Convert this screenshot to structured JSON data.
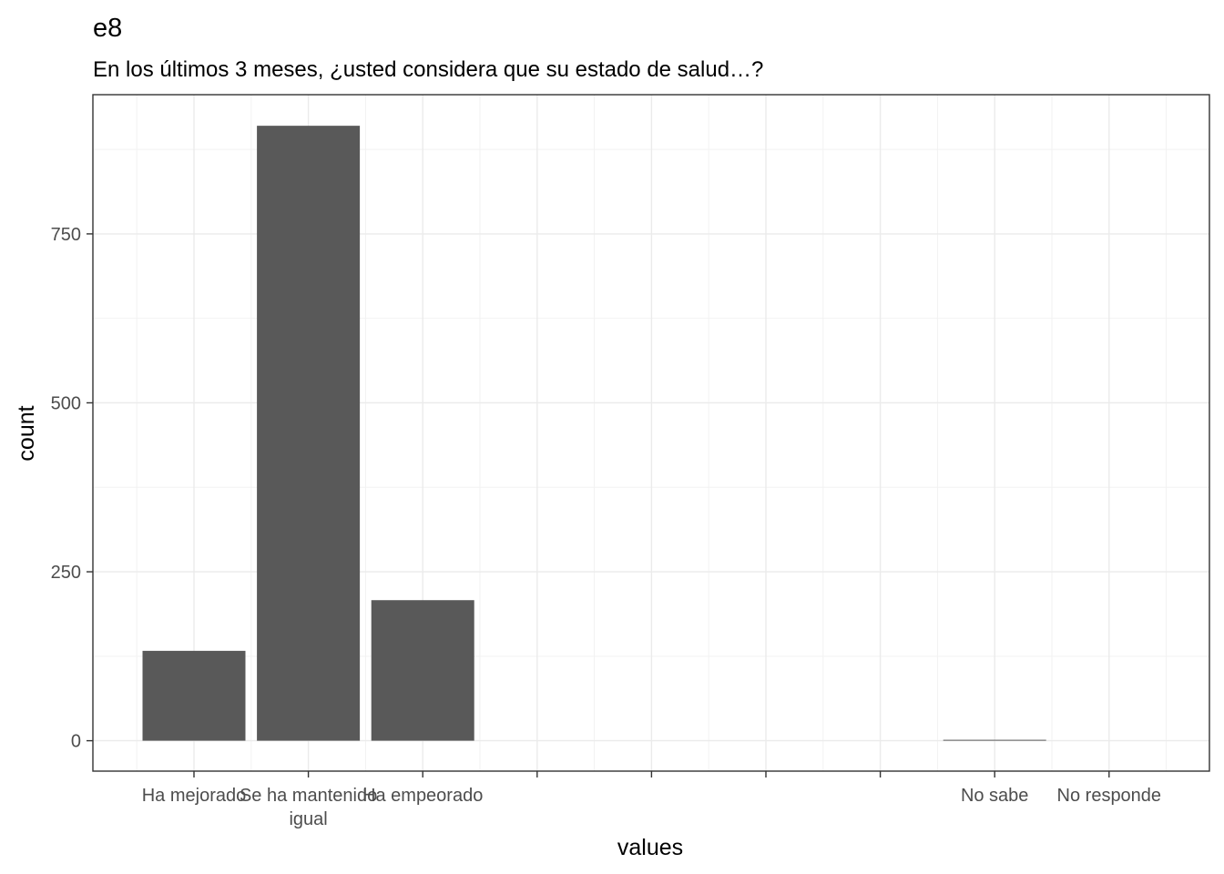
{
  "chart_data": {
    "type": "bar",
    "title": "e8",
    "subtitle": "En los últimos 3 meses, ¿usted considera que su estado de salud…?",
    "xlabel": "values",
    "ylabel": "count",
    "categories": [
      "Ha mejorado",
      "Se ha mantenido igual",
      "Ha empeorado",
      "",
      "",
      "",
      "",
      "No sabe",
      "No responde"
    ],
    "category_label_lines": [
      [
        "Ha mejorado"
      ],
      [
        "Se ha mantenido",
        "igual"
      ],
      [
        "Ha empeorado"
      ],
      [],
      [],
      [],
      [],
      [
        "No sabe"
      ],
      [
        "No responde"
      ]
    ],
    "values": [
      133,
      910,
      208,
      null,
      null,
      null,
      null,
      1,
      0
    ],
    "yticks": [
      0,
      250,
      500,
      750
    ],
    "ylim": [
      -45,
      956
    ],
    "grid": true,
    "bar_color": "#595959",
    "theme": "bw"
  }
}
